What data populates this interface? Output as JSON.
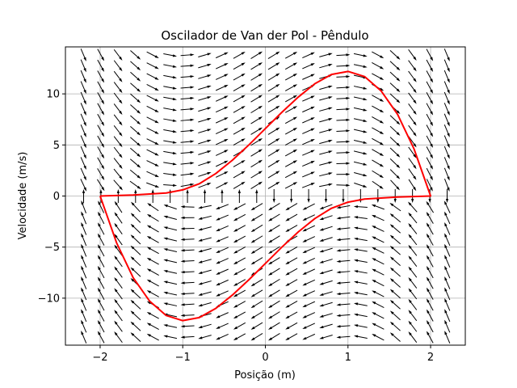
{
  "chart_data": {
    "type": "line",
    "title": "Oscilador de Van der Pol - Pêndulo",
    "xlabel": "Posição (m)",
    "ylabel": "Velocidade (m/s)",
    "xlim": [
      -2.42,
      2.42
    ],
    "ylim": [
      -14.6,
      14.6
    ],
    "x_ticks": [
      -2,
      -1,
      0,
      1,
      2
    ],
    "x_tick_labels": [
      "−2",
      "−1",
      "0",
      "1",
      "2"
    ],
    "y_ticks": [
      -10,
      -5,
      0,
      5,
      10
    ],
    "y_tick_labels": [
      "−10",
      "−5",
      "0",
      "5",
      "10"
    ],
    "grid": true,
    "vector_field": {
      "x_range": [
        -2.2,
        2.2
      ],
      "x_count": 22,
      "y_range": [
        -13.8,
        13.8
      ],
      "y_count": 27,
      "mu": 5,
      "color": "#000000"
    },
    "series": [
      {
        "color": "#ff0000",
        "x": [
          -2.0,
          -1.8,
          -1.6,
          -1.4,
          -1.2,
          -1.0,
          -0.8,
          -0.6,
          -0.4,
          -0.2,
          0.0,
          0.2,
          0.4,
          0.6,
          0.8,
          1.0,
          1.2,
          1.4,
          1.6,
          1.8,
          2.0,
          1.8,
          1.6,
          1.4,
          1.2,
          1.0,
          0.8,
          0.6,
          0.4,
          0.2,
          0.0,
          -0.2,
          -0.4,
          -0.6,
          -0.8,
          -1.0,
          -1.2,
          -1.4,
          -1.6,
          -1.8,
          -2.0
        ],
        "y": [
          0.0,
          -4.6,
          -8.0,
          -10.3,
          -11.7,
          -12.2,
          -11.9,
          -11.0,
          -9.7,
          -8.2,
          -6.6,
          -5.0,
          -3.5,
          -2.2,
          -1.2,
          -0.6,
          -0.3,
          -0.2,
          -0.1,
          -0.05,
          0.0,
          4.6,
          8.0,
          10.3,
          11.7,
          12.2,
          11.9,
          11.0,
          9.7,
          8.2,
          6.6,
          5.0,
          3.5,
          2.2,
          1.2,
          0.6,
          0.3,
          0.2,
          0.1,
          0.05,
          0.0
        ]
      }
    ]
  }
}
